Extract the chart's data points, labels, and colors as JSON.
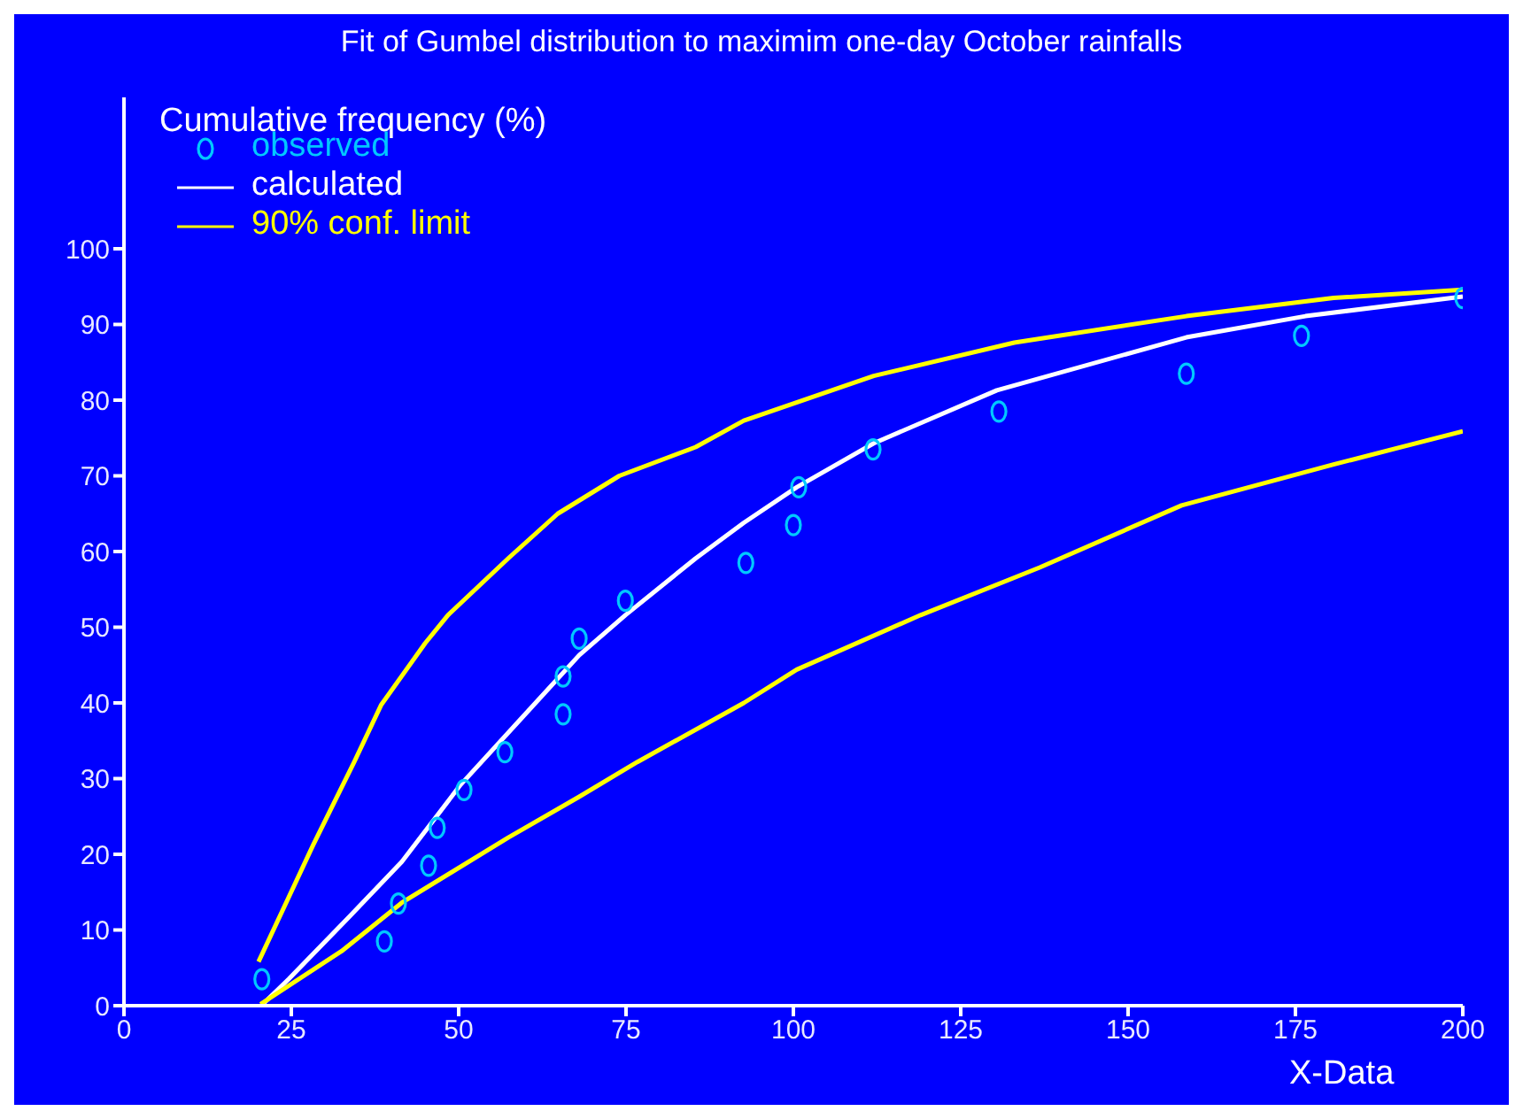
{
  "chart_data": {
    "type": "line",
    "title": "Fit of Gumbel distribution to maximim one-day October rainfalls",
    "ylabel": "Cumulative frequency (%)",
    "xlabel": "X-Data",
    "xlim": [
      0,
      200
    ],
    "xticks": [
      0,
      25,
      50,
      75,
      100,
      125,
      150,
      175,
      200
    ],
    "ylim": [
      0,
      120
    ],
    "yticks": [
      0,
      10,
      20,
      30,
      40,
      50,
      60,
      70,
      80,
      90,
      100
    ],
    "grid": false,
    "legend": "top left",
    "series": [
      {
        "name": "observed",
        "type": "scatter",
        "marker": "circle",
        "color": "#00c8ff",
        "x": [
          20.6,
          38.9,
          41,
          45.5,
          46.8,
          50.8,
          56.9,
          65.6,
          65.6,
          68,
          74.9,
          92.9,
          100,
          100.8,
          111.9,
          130.7,
          158.7,
          175.9,
          200
        ],
        "values": [
          3.5,
          8.5,
          13.5,
          18.5,
          23.5,
          28.5,
          33.5,
          38.5,
          43.5,
          48.5,
          53.5,
          58.5,
          63.5,
          68.5,
          73.5,
          78.5,
          83.5,
          88.5,
          93.5
        ]
      },
      {
        "name": "calculated",
        "line_style": "solid",
        "color": "#ffffff",
        "x": [
          20.5,
          24.6,
          33.6,
          41.5,
          50.3,
          59,
          68,
          74.9,
          85.4,
          92.6,
          100.5,
          112,
          130.4,
          158.7,
          176.5,
          200
        ],
        "values": [
          0,
          3.5,
          11.7,
          19,
          29.2,
          37.6,
          46.3,
          51.6,
          59.1,
          63.8,
          68.5,
          74.3,
          81.3,
          88.3,
          91.1,
          93.7
        ]
      },
      {
        "name": "90% conf. limit",
        "line_style": "solid",
        "color": "#ffff00",
        "x": [
          20.1,
          28.3,
          34.4,
          38.4,
          45,
          48.4,
          57.4,
          64.8,
          74,
          85.4,
          92.6,
          112,
          133,
          158.7,
          180.7,
          200
        ],
        "values": [
          5.8,
          21.3,
          32.2,
          39.7,
          47.9,
          51.6,
          59.1,
          65,
          70,
          73.8,
          77.3,
          83.2,
          87.6,
          91.1,
          93.5,
          94.6
        ]
      },
      {
        "line_style": "solid",
        "color": "#ffff00",
        "x": [
          20.4,
          32.5,
          41.5,
          57.4,
          68,
          76.7,
          92.6,
          100.5,
          119,
          136.8,
          158,
          180.7,
          200
        ],
        "values": [
          0.2,
          7.2,
          13.6,
          22.2,
          27.6,
          32.2,
          40,
          44.4,
          51.6,
          57.9,
          66.1,
          71.5,
          75.9
        ]
      }
    ]
  }
}
